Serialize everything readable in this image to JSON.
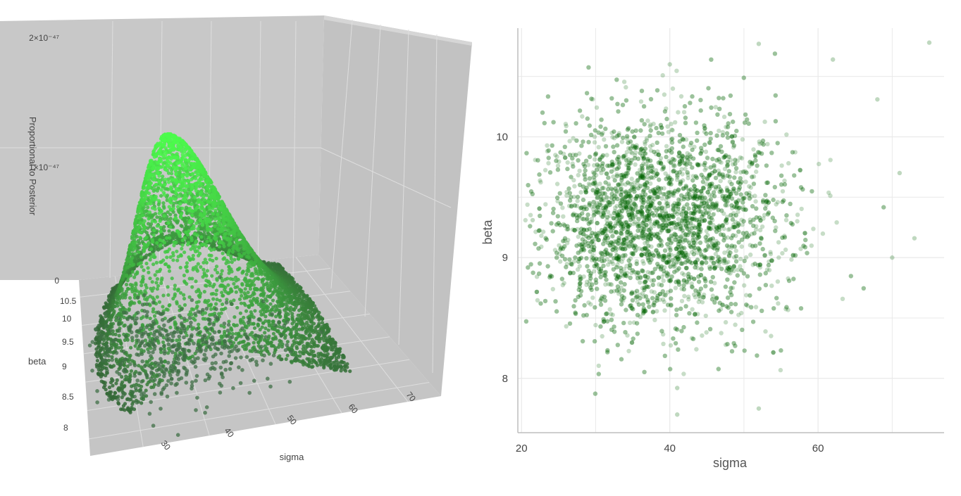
{
  "colors": {
    "scene_bg": "#c8c8c8",
    "surface_low": "#335f36",
    "surface_high": "#4cff4c",
    "scatter_3d": "#3f6f45",
    "scatter_2d": "#006400",
    "grid_2d": "#e9e9e9",
    "axis_2d": "#bdbdbd"
  },
  "chart_data": [
    {
      "type": "scatter",
      "subtype": "3d-surface-with-scatter",
      "title": "",
      "xlabel": "sigma",
      "ylabel": "beta",
      "zlabel": "Proportional to Posterior",
      "x_ticks": [
        "30",
        "40",
        "50",
        "60",
        "70"
      ],
      "y_ticks": [
        "8",
        "8.5",
        "9",
        "9.5",
        "10",
        "10.5"
      ],
      "z_ticks": [
        "0",
        "1×10⁻⁴⁷",
        "2×10⁻⁴⁷"
      ],
      "x_range": [
        22,
        75
      ],
      "y_range": [
        7.7,
        10.8
      ],
      "z_range": [
        0,
        2e-47
      ],
      "grid": true,
      "surface": {
        "description": "posterior density over sigma and beta",
        "peak_sigma": 37,
        "peak_beta": 9.3,
        "peak_value": 1.95e-47
      },
      "scatter_points_approx": 450
    },
    {
      "type": "scatter",
      "title": "",
      "xlabel": "sigma",
      "ylabel": "beta",
      "x_ticks": [
        "20",
        "40",
        "60"
      ],
      "y_ticks": [
        "8",
        "9",
        "10"
      ],
      "xlim": [
        19.5,
        77
      ],
      "ylim": [
        7.55,
        10.9
      ],
      "grid": true,
      "legend": "none",
      "point_count_approx": 4000,
      "center": {
        "sigma": 38,
        "beta": 9.3
      },
      "spread": {
        "sigma": 7.2,
        "beta": 0.42
      },
      "outliers": [
        {
          "sigma": 75,
          "beta": 10.78
        },
        {
          "sigma": 52,
          "beta": 10.77
        },
        {
          "sigma": 62,
          "beta": 10.64
        },
        {
          "sigma": 40,
          "beta": 10.6
        },
        {
          "sigma": 68,
          "beta": 10.31
        },
        {
          "sigma": 71,
          "beta": 9.7
        },
        {
          "sigma": 70,
          "beta": 9.0
        },
        {
          "sigma": 73,
          "beta": 9.16
        },
        {
          "sigma": 52,
          "beta": 7.75
        },
        {
          "sigma": 41,
          "beta": 7.7
        },
        {
          "sigma": 41,
          "beta": 7.92
        },
        {
          "sigma": 21.5,
          "beta": 9.31
        }
      ]
    }
  ]
}
